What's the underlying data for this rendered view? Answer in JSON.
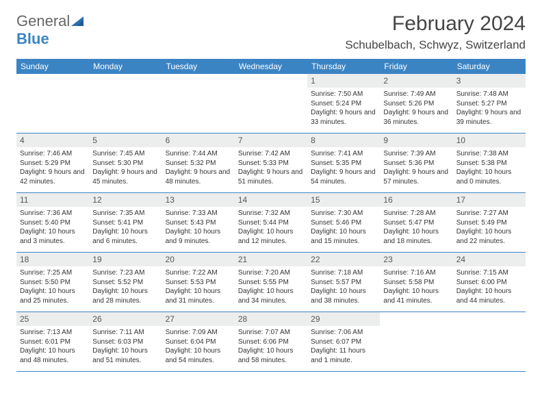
{
  "brand": {
    "general": "General",
    "blue": "Blue"
  },
  "title": "February 2024",
  "location": "Schubelbach, Schwyz, Switzerland",
  "colors": {
    "header_bg": "#3b84c4",
    "daynum_bg": "#eceded",
    "border": "#3b84c4",
    "text": "#333333",
    "background": "#ffffff"
  },
  "typography": {
    "title_fontsize": 30,
    "location_fontsize": 17,
    "dow_fontsize": 12,
    "daynum_fontsize": 12,
    "body_fontsize": 10
  },
  "dow": [
    "Sunday",
    "Monday",
    "Tuesday",
    "Wednesday",
    "Thursday",
    "Friday",
    "Saturday"
  ],
  "weeks": [
    [
      {
        "n": "",
        "sr": "",
        "ss": "",
        "dl": ""
      },
      {
        "n": "",
        "sr": "",
        "ss": "",
        "dl": ""
      },
      {
        "n": "",
        "sr": "",
        "ss": "",
        "dl": ""
      },
      {
        "n": "",
        "sr": "",
        "ss": "",
        "dl": ""
      },
      {
        "n": "1",
        "sr": "Sunrise: 7:50 AM",
        "ss": "Sunset: 5:24 PM",
        "dl": "Daylight: 9 hours and 33 minutes."
      },
      {
        "n": "2",
        "sr": "Sunrise: 7:49 AM",
        "ss": "Sunset: 5:26 PM",
        "dl": "Daylight: 9 hours and 36 minutes."
      },
      {
        "n": "3",
        "sr": "Sunrise: 7:48 AM",
        "ss": "Sunset: 5:27 PM",
        "dl": "Daylight: 9 hours and 39 minutes."
      }
    ],
    [
      {
        "n": "4",
        "sr": "Sunrise: 7:46 AM",
        "ss": "Sunset: 5:29 PM",
        "dl": "Daylight: 9 hours and 42 minutes."
      },
      {
        "n": "5",
        "sr": "Sunrise: 7:45 AM",
        "ss": "Sunset: 5:30 PM",
        "dl": "Daylight: 9 hours and 45 minutes."
      },
      {
        "n": "6",
        "sr": "Sunrise: 7:44 AM",
        "ss": "Sunset: 5:32 PM",
        "dl": "Daylight: 9 hours and 48 minutes."
      },
      {
        "n": "7",
        "sr": "Sunrise: 7:42 AM",
        "ss": "Sunset: 5:33 PM",
        "dl": "Daylight: 9 hours and 51 minutes."
      },
      {
        "n": "8",
        "sr": "Sunrise: 7:41 AM",
        "ss": "Sunset: 5:35 PM",
        "dl": "Daylight: 9 hours and 54 minutes."
      },
      {
        "n": "9",
        "sr": "Sunrise: 7:39 AM",
        "ss": "Sunset: 5:36 PM",
        "dl": "Daylight: 9 hours and 57 minutes."
      },
      {
        "n": "10",
        "sr": "Sunrise: 7:38 AM",
        "ss": "Sunset: 5:38 PM",
        "dl": "Daylight: 10 hours and 0 minutes."
      }
    ],
    [
      {
        "n": "11",
        "sr": "Sunrise: 7:36 AM",
        "ss": "Sunset: 5:40 PM",
        "dl": "Daylight: 10 hours and 3 minutes."
      },
      {
        "n": "12",
        "sr": "Sunrise: 7:35 AM",
        "ss": "Sunset: 5:41 PM",
        "dl": "Daylight: 10 hours and 6 minutes."
      },
      {
        "n": "13",
        "sr": "Sunrise: 7:33 AM",
        "ss": "Sunset: 5:43 PM",
        "dl": "Daylight: 10 hours and 9 minutes."
      },
      {
        "n": "14",
        "sr": "Sunrise: 7:32 AM",
        "ss": "Sunset: 5:44 PM",
        "dl": "Daylight: 10 hours and 12 minutes."
      },
      {
        "n": "15",
        "sr": "Sunrise: 7:30 AM",
        "ss": "Sunset: 5:46 PM",
        "dl": "Daylight: 10 hours and 15 minutes."
      },
      {
        "n": "16",
        "sr": "Sunrise: 7:28 AM",
        "ss": "Sunset: 5:47 PM",
        "dl": "Daylight: 10 hours and 18 minutes."
      },
      {
        "n": "17",
        "sr": "Sunrise: 7:27 AM",
        "ss": "Sunset: 5:49 PM",
        "dl": "Daylight: 10 hours and 22 minutes."
      }
    ],
    [
      {
        "n": "18",
        "sr": "Sunrise: 7:25 AM",
        "ss": "Sunset: 5:50 PM",
        "dl": "Daylight: 10 hours and 25 minutes."
      },
      {
        "n": "19",
        "sr": "Sunrise: 7:23 AM",
        "ss": "Sunset: 5:52 PM",
        "dl": "Daylight: 10 hours and 28 minutes."
      },
      {
        "n": "20",
        "sr": "Sunrise: 7:22 AM",
        "ss": "Sunset: 5:53 PM",
        "dl": "Daylight: 10 hours and 31 minutes."
      },
      {
        "n": "21",
        "sr": "Sunrise: 7:20 AM",
        "ss": "Sunset: 5:55 PM",
        "dl": "Daylight: 10 hours and 34 minutes."
      },
      {
        "n": "22",
        "sr": "Sunrise: 7:18 AM",
        "ss": "Sunset: 5:57 PM",
        "dl": "Daylight: 10 hours and 38 minutes."
      },
      {
        "n": "23",
        "sr": "Sunrise: 7:16 AM",
        "ss": "Sunset: 5:58 PM",
        "dl": "Daylight: 10 hours and 41 minutes."
      },
      {
        "n": "24",
        "sr": "Sunrise: 7:15 AM",
        "ss": "Sunset: 6:00 PM",
        "dl": "Daylight: 10 hours and 44 minutes."
      }
    ],
    [
      {
        "n": "25",
        "sr": "Sunrise: 7:13 AM",
        "ss": "Sunset: 6:01 PM",
        "dl": "Daylight: 10 hours and 48 minutes."
      },
      {
        "n": "26",
        "sr": "Sunrise: 7:11 AM",
        "ss": "Sunset: 6:03 PM",
        "dl": "Daylight: 10 hours and 51 minutes."
      },
      {
        "n": "27",
        "sr": "Sunrise: 7:09 AM",
        "ss": "Sunset: 6:04 PM",
        "dl": "Daylight: 10 hours and 54 minutes."
      },
      {
        "n": "28",
        "sr": "Sunrise: 7:07 AM",
        "ss": "Sunset: 6:06 PM",
        "dl": "Daylight: 10 hours and 58 minutes."
      },
      {
        "n": "29",
        "sr": "Sunrise: 7:06 AM",
        "ss": "Sunset: 6:07 PM",
        "dl": "Daylight: 11 hours and 1 minute."
      },
      {
        "n": "",
        "sr": "",
        "ss": "",
        "dl": ""
      },
      {
        "n": "",
        "sr": "",
        "ss": "",
        "dl": ""
      }
    ]
  ]
}
